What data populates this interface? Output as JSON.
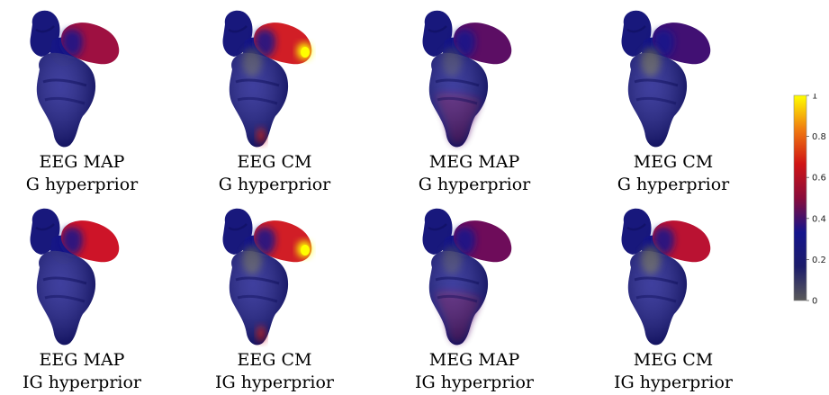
{
  "panels": [
    {
      "line1": "EEG MAP",
      "line2": "G hyperprior",
      "top_hot": 0.55,
      "hotspot": 0.0,
      "grey": 0.0,
      "low_red": 0.0,
      "bottom_purple": 0.0
    },
    {
      "line1": "EEG CM",
      "line2": "G hyperprior",
      "top_hot": 0.62,
      "hotspot": 1.0,
      "grey": 0.5,
      "low_red": 0.5,
      "bottom_purple": 0.0
    },
    {
      "line1": "MEG MAP",
      "line2": "G hyperprior",
      "top_hot": 0.48,
      "hotspot": 0.0,
      "grey": 0.3,
      "low_red": 0.0,
      "bottom_purple": 0.5
    },
    {
      "line1": "MEG CM",
      "line2": "G hyperprior",
      "top_hot": 0.45,
      "hotspot": 0.0,
      "grey": 0.7,
      "low_red": 0.0,
      "bottom_purple": 0.0
    },
    {
      "line1": "EEG MAP",
      "line2": "IG hyperprior",
      "top_hot": 0.6,
      "hotspot": 0.0,
      "grey": 0.0,
      "low_red": 0.0,
      "bottom_purple": 0.0
    },
    {
      "line1": "EEG CM",
      "line2": "IG hyperprior",
      "top_hot": 0.62,
      "hotspot": 1.0,
      "grey": 0.6,
      "low_red": 0.5,
      "bottom_purple": 0.0
    },
    {
      "line1": "MEG MAP",
      "line2": "IG hyperprior",
      "top_hot": 0.5,
      "hotspot": 0.0,
      "grey": 0.3,
      "low_red": 0.0,
      "bottom_purple": 0.5
    },
    {
      "line1": "MEG CM",
      "line2": "IG hyperprior",
      "top_hot": 0.58,
      "hotspot": 0.0,
      "grey": 0.7,
      "low_red": 0.0,
      "bottom_purple": 0.0
    }
  ],
  "colorbar": {
    "ticks": [
      "0",
      "0.2",
      "0.4",
      "0.6",
      "0.8",
      "1"
    ],
    "stops": [
      "#5a5a5a",
      "#1c1c6b",
      "#14148c",
      "#8a0c3a",
      "#d01414",
      "#f07a10",
      "#ffff00"
    ]
  }
}
